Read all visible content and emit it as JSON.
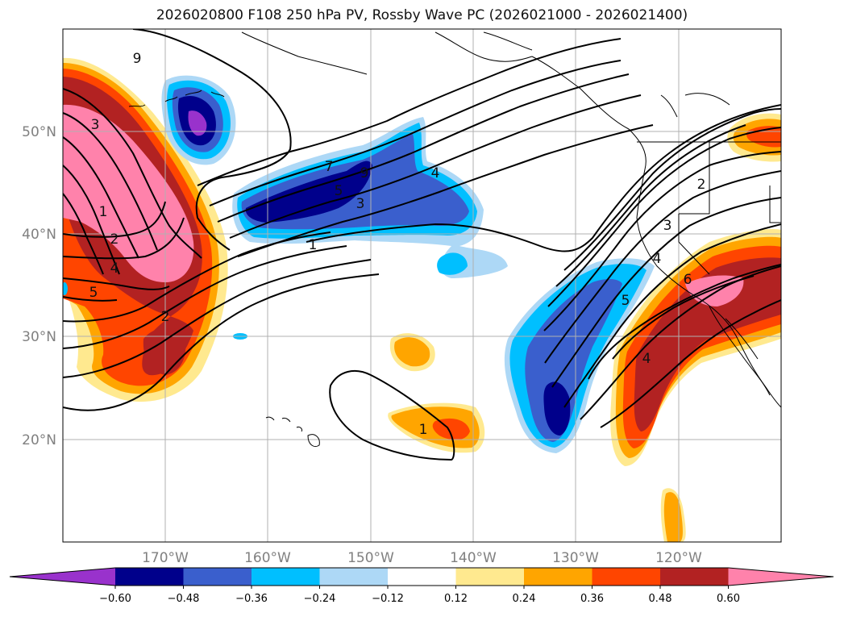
{
  "title": "2026020800 F108 250 hPa PV, Rossby Wave PC (2026021000 - 2026021400)",
  "lat_labels": [
    "50°N",
    "40°N",
    "30°N",
    "20°N"
  ],
  "lon_labels": [
    "170°W",
    "160°W",
    "150°W",
    "140°W",
    "130°W",
    "120°W"
  ],
  "colorbar": {
    "colors": [
      "#9932cc",
      "#00008b",
      "#3a5fcd",
      "#00bfff",
      "#add8f6",
      "#ffffff",
      "#ffe98f",
      "#ffa500",
      "#ff4500",
      "#b22222",
      "#ff82ab"
    ],
    "ticks": [
      "−0.60",
      "−0.48",
      "−0.36",
      "−0.24",
      "−0.12",
      "0.12",
      "0.24",
      "0.36",
      "0.48",
      "0.60"
    ]
  },
  "contour_labels": [
    "9",
    "3",
    "1",
    "2",
    "4",
    "5",
    "2",
    "7",
    "9",
    "5",
    "3",
    "4",
    "1",
    "1",
    "5",
    "2",
    "3",
    "4",
    "6",
    "4"
  ]
}
